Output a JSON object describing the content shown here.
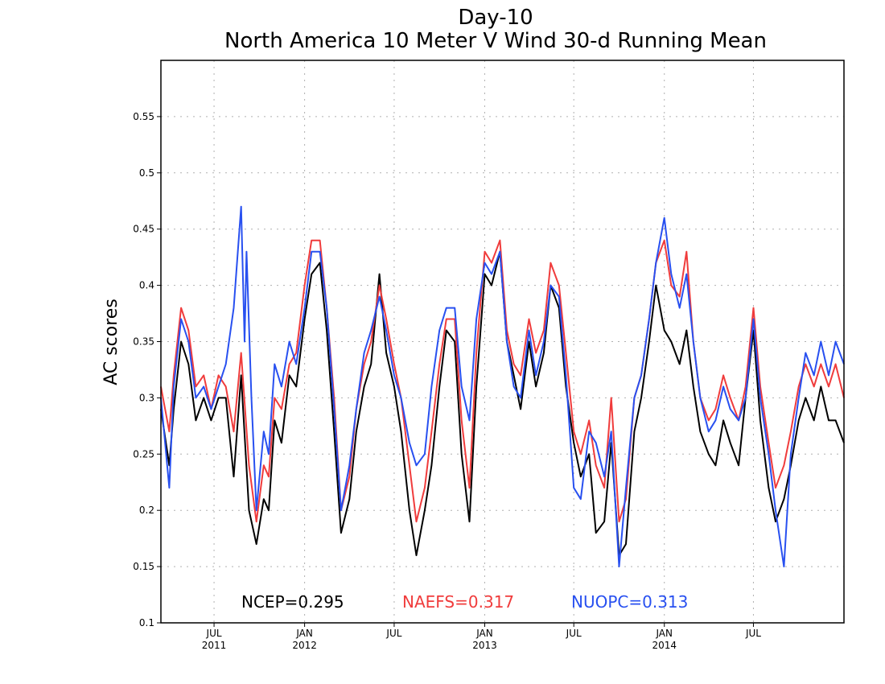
{
  "chart_data": {
    "type": "line",
    "title": "Day-10",
    "subtitle": "North America 10 Meter V Wind 30-d Running Mean",
    "xlabel": "",
    "ylabel": "AC scores",
    "ylim": [
      0.1,
      0.6
    ],
    "xlim": [
      "2011-03-15",
      "2015-01-01"
    ],
    "grid": true,
    "y_ticks": [
      0.1,
      0.15,
      0.2,
      0.25,
      0.3,
      0.35,
      0.4,
      0.45,
      0.5,
      0.55
    ],
    "y_tick_labels": [
      "0.1",
      "0.15",
      "0.2",
      "0.25",
      "0.3",
      "0.35",
      "0.4",
      "0.45",
      "0.5",
      "0.55"
    ],
    "x_ticks": [
      {
        "date": "2011-07-01",
        "month": "JUL",
        "year": "2011"
      },
      {
        "date": "2012-01-01",
        "month": "JAN",
        "year": "2012"
      },
      {
        "date": "2012-07-01",
        "month": "JUL",
        "year": ""
      },
      {
        "date": "2013-01-01",
        "month": "JAN",
        "year": "2013"
      },
      {
        "date": "2013-07-01",
        "month": "JUL",
        "year": ""
      },
      {
        "date": "2014-01-01",
        "month": "JAN",
        "year": "2014"
      },
      {
        "date": "2014-07-01",
        "month": "JUL",
        "year": ""
      }
    ],
    "legend_placement": "bottom",
    "legend": [
      {
        "label": "NCEP=0.295",
        "color": "#000000"
      },
      {
        "label": "NAEFS=0.317",
        "color": "#f03c3c"
      },
      {
        "label": "NUOPC=0.313",
        "color": "#2850f0"
      }
    ],
    "series": [
      {
        "name": "NCEP",
        "color": "#000000",
        "x": [
          "2011-03-15",
          "2011-04-01",
          "2011-04-10",
          "2011-04-25",
          "2011-05-10",
          "2011-05-25",
          "2011-06-10",
          "2011-06-25",
          "2011-07-10",
          "2011-07-25",
          "2011-08-10",
          "2011-08-25",
          "2011-09-10",
          "2011-09-25",
          "2011-10-10",
          "2011-10-20",
          "2011-11-01",
          "2011-11-15",
          "2011-12-01",
          "2011-12-15",
          "2012-01-01",
          "2012-01-15",
          "2012-02-01",
          "2012-02-15",
          "2012-03-01",
          "2012-03-15",
          "2012-04-01",
          "2012-04-15",
          "2012-05-01",
          "2012-05-15",
          "2012-06-01",
          "2012-06-15",
          "2012-07-01",
          "2012-07-15",
          "2012-08-01",
          "2012-08-15",
          "2012-09-01",
          "2012-09-15",
          "2012-10-01",
          "2012-10-15",
          "2012-11-01",
          "2012-11-15",
          "2012-12-01",
          "2012-12-15",
          "2013-01-01",
          "2013-01-15",
          "2013-02-01",
          "2013-02-15",
          "2013-03-01",
          "2013-03-15",
          "2013-04-01",
          "2013-04-15",
          "2013-05-01",
          "2013-05-15",
          "2013-06-01",
          "2013-06-15",
          "2013-07-01",
          "2013-07-15",
          "2013-08-01",
          "2013-08-15",
          "2013-09-01",
          "2013-09-15",
          "2013-10-01",
          "2013-10-15",
          "2013-11-01",
          "2013-11-15",
          "2013-12-01",
          "2013-12-15",
          "2014-01-01",
          "2014-01-15",
          "2014-02-01",
          "2014-02-15",
          "2014-03-01",
          "2014-03-15",
          "2014-04-01",
          "2014-04-15",
          "2014-05-01",
          "2014-05-15",
          "2014-06-01",
          "2014-06-15",
          "2014-07-01",
          "2014-07-15",
          "2014-08-01",
          "2014-08-15",
          "2014-09-01",
          "2014-09-15",
          "2014-10-01",
          "2014-10-15",
          "2014-11-01",
          "2014-11-15",
          "2014-12-01",
          "2014-12-15",
          "2015-01-01"
        ],
        "y": [
          0.29,
          0.24,
          0.29,
          0.35,
          0.33,
          0.28,
          0.3,
          0.28,
          0.3,
          0.3,
          0.23,
          0.32,
          0.2,
          0.17,
          0.21,
          0.2,
          0.28,
          0.26,
          0.32,
          0.31,
          0.37,
          0.41,
          0.42,
          0.36,
          0.27,
          0.18,
          0.21,
          0.27,
          0.31,
          0.33,
          0.41,
          0.34,
          0.31,
          0.27,
          0.2,
          0.16,
          0.2,
          0.24,
          0.31,
          0.36,
          0.35,
          0.25,
          0.19,
          0.31,
          0.41,
          0.4,
          0.43,
          0.35,
          0.32,
          0.29,
          0.35,
          0.31,
          0.34,
          0.4,
          0.38,
          0.31,
          0.26,
          0.23,
          0.25,
          0.18,
          0.19,
          0.26,
          0.16,
          0.17,
          0.27,
          0.3,
          0.35,
          0.4,
          0.36,
          0.35,
          0.33,
          0.36,
          0.31,
          0.27,
          0.25,
          0.24,
          0.28,
          0.26,
          0.24,
          0.3,
          0.36,
          0.28,
          0.22,
          0.19,
          0.21,
          0.24,
          0.28,
          0.3,
          0.28,
          0.31,
          0.28,
          0.28,
          0.26
        ]
      },
      {
        "name": "NAEFS",
        "color": "#f03c3c",
        "x": [
          "2011-03-15",
          "2011-04-01",
          "2011-04-10",
          "2011-04-25",
          "2011-05-10",
          "2011-05-25",
          "2011-06-10",
          "2011-06-25",
          "2011-07-10",
          "2011-07-25",
          "2011-08-10",
          "2011-08-25",
          "2011-09-10",
          "2011-09-25",
          "2011-10-10",
          "2011-10-20",
          "2011-11-01",
          "2011-11-15",
          "2011-12-01",
          "2011-12-15",
          "2012-01-01",
          "2012-01-15",
          "2012-02-01",
          "2012-02-15",
          "2012-03-01",
          "2012-03-15",
          "2012-04-01",
          "2012-04-15",
          "2012-05-01",
          "2012-05-15",
          "2012-06-01",
          "2012-06-15",
          "2012-07-01",
          "2012-07-15",
          "2012-08-01",
          "2012-08-15",
          "2012-09-01",
          "2012-09-15",
          "2012-10-01",
          "2012-10-15",
          "2012-11-01",
          "2012-11-15",
          "2012-12-01",
          "2012-12-15",
          "2013-01-01",
          "2013-01-15",
          "2013-02-01",
          "2013-02-15",
          "2013-03-01",
          "2013-03-15",
          "2013-04-01",
          "2013-04-15",
          "2013-05-01",
          "2013-05-15",
          "2013-06-01",
          "2013-06-15",
          "2013-07-01",
          "2013-07-15",
          "2013-08-01",
          "2013-08-15",
          "2013-09-01",
          "2013-09-15",
          "2013-10-01",
          "2013-10-15",
          "2013-11-01",
          "2013-11-15",
          "2013-12-01",
          "2013-12-15",
          "2014-01-01",
          "2014-01-15",
          "2014-02-01",
          "2014-02-15",
          "2014-03-01",
          "2014-03-15",
          "2014-04-01",
          "2014-04-15",
          "2014-05-01",
          "2014-05-15",
          "2014-06-01",
          "2014-06-15",
          "2014-07-01",
          "2014-07-15",
          "2014-08-01",
          "2014-08-15",
          "2014-09-01",
          "2014-09-15",
          "2014-10-01",
          "2014-10-15",
          "2014-11-01",
          "2014-11-15",
          "2014-12-01",
          "2014-12-15",
          "2015-01-01"
        ],
        "y": [
          0.31,
          0.27,
          0.32,
          0.38,
          0.36,
          0.31,
          0.32,
          0.29,
          0.32,
          0.31,
          0.27,
          0.34,
          0.24,
          0.19,
          0.24,
          0.23,
          0.3,
          0.29,
          0.33,
          0.34,
          0.4,
          0.44,
          0.44,
          0.38,
          0.3,
          0.2,
          0.23,
          0.29,
          0.33,
          0.35,
          0.4,
          0.37,
          0.33,
          0.3,
          0.24,
          0.19,
          0.22,
          0.27,
          0.33,
          0.37,
          0.37,
          0.28,
          0.22,
          0.34,
          0.43,
          0.42,
          0.44,
          0.36,
          0.33,
          0.32,
          0.37,
          0.34,
          0.36,
          0.42,
          0.4,
          0.34,
          0.27,
          0.25,
          0.28,
          0.24,
          0.22,
          0.3,
          0.19,
          0.21,
          0.3,
          0.32,
          0.37,
          0.42,
          0.44,
          0.4,
          0.39,
          0.43,
          0.35,
          0.3,
          0.28,
          0.29,
          0.32,
          0.3,
          0.28,
          0.31,
          0.38,
          0.31,
          0.26,
          0.22,
          0.24,
          0.27,
          0.31,
          0.33,
          0.31,
          0.33,
          0.31,
          0.33,
          0.3
        ]
      },
      {
        "name": "NUOPC",
        "color": "#2850f0",
        "x": [
          "2011-03-15",
          "2011-04-01",
          "2011-04-10",
          "2011-04-25",
          "2011-05-10",
          "2011-05-25",
          "2011-06-10",
          "2011-06-25",
          "2011-07-10",
          "2011-07-25",
          "2011-08-10",
          "2011-08-25",
          "2011-09-01",
          "2011-09-05",
          "2011-09-15",
          "2011-09-25",
          "2011-10-10",
          "2011-10-20",
          "2011-11-01",
          "2011-11-15",
          "2011-12-01",
          "2011-12-15",
          "2012-01-01",
          "2012-01-15",
          "2012-02-01",
          "2012-02-15",
          "2012-03-01",
          "2012-03-15",
          "2012-04-01",
          "2012-04-15",
          "2012-05-01",
          "2012-05-15",
          "2012-06-01",
          "2012-06-15",
          "2012-07-01",
          "2012-07-15",
          "2012-08-01",
          "2012-08-15",
          "2012-09-01",
          "2012-09-15",
          "2012-10-01",
          "2012-10-15",
          "2012-11-01",
          "2012-11-15",
          "2012-12-01",
          "2012-12-15",
          "2013-01-01",
          "2013-01-15",
          "2013-02-01",
          "2013-02-15",
          "2013-03-01",
          "2013-03-15",
          "2013-04-01",
          "2013-04-15",
          "2013-05-01",
          "2013-05-15",
          "2013-06-01",
          "2013-06-15",
          "2013-07-01",
          "2013-07-15",
          "2013-08-01",
          "2013-08-15",
          "2013-09-01",
          "2013-09-15",
          "2013-10-01",
          "2013-10-15",
          "2013-11-01",
          "2013-11-15",
          "2013-12-01",
          "2013-12-15",
          "2014-01-01",
          "2014-01-15",
          "2014-02-01",
          "2014-02-15",
          "2014-03-01",
          "2014-03-15",
          "2014-04-01",
          "2014-04-15",
          "2014-05-01",
          "2014-05-15",
          "2014-06-01",
          "2014-06-15",
          "2014-07-01",
          "2014-07-15",
          "2014-08-01",
          "2014-08-15",
          "2014-09-01",
          "2014-09-15",
          "2014-10-01",
          "2014-10-15",
          "2014-11-01",
          "2014-11-15",
          "2014-12-01",
          "2014-12-15",
          "2015-01-01"
        ],
        "y": [
          0.3,
          0.22,
          0.31,
          0.37,
          0.35,
          0.3,
          0.31,
          0.29,
          0.31,
          0.33,
          0.38,
          0.47,
          0.35,
          0.43,
          0.3,
          0.2,
          0.27,
          0.25,
          0.33,
          0.31,
          0.35,
          0.33,
          0.38,
          0.43,
          0.43,
          0.38,
          0.29,
          0.2,
          0.24,
          0.29,
          0.34,
          0.36,
          0.39,
          0.36,
          0.32,
          0.3,
          0.26,
          0.24,
          0.25,
          0.31,
          0.36,
          0.38,
          0.38,
          0.31,
          0.28,
          0.37,
          0.42,
          0.41,
          0.43,
          0.35,
          0.31,
          0.3,
          0.36,
          0.32,
          0.35,
          0.4,
          0.39,
          0.32,
          0.22,
          0.21,
          0.27,
          0.26,
          0.23,
          0.27,
          0.15,
          0.22,
          0.3,
          0.32,
          0.37,
          0.42,
          0.46,
          0.41,
          0.38,
          0.41,
          0.35,
          0.3,
          0.27,
          0.28,
          0.31,
          0.29,
          0.28,
          0.3,
          0.37,
          0.3,
          0.25,
          0.2,
          0.15,
          0.25,
          0.3,
          0.34,
          0.32,
          0.35,
          0.32,
          0.35,
          0.33
        ]
      }
    ]
  }
}
